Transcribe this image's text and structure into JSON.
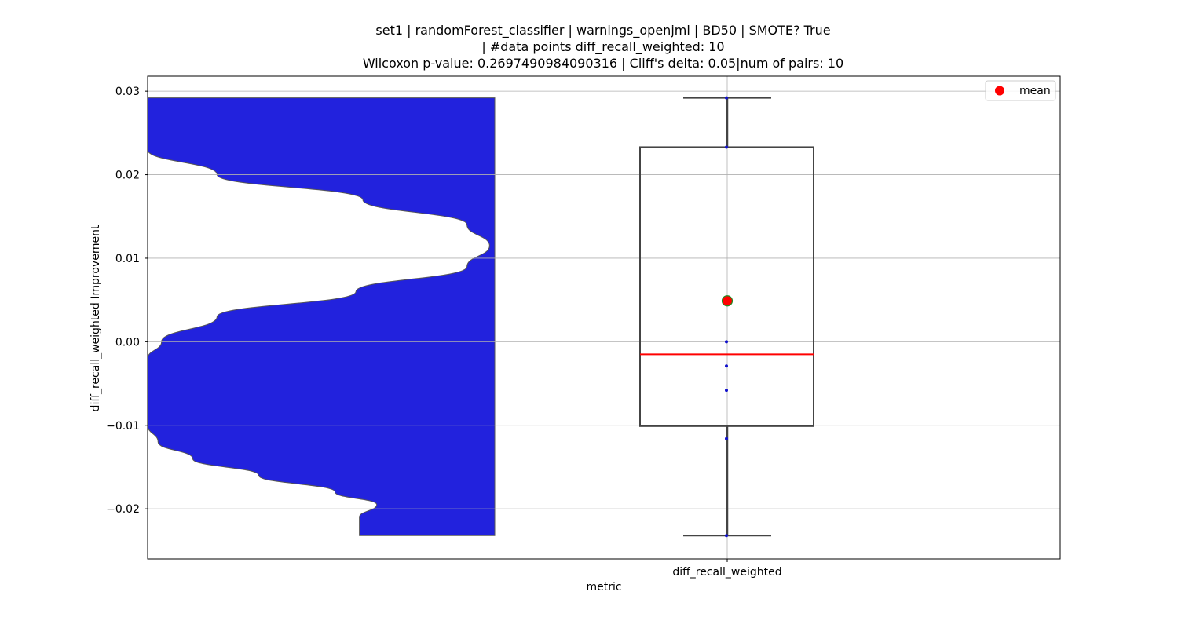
{
  "chart_data": {
    "type": "box",
    "title_lines": [
      "set1 | randomForest_classifier | warnings_openjml | BD50 | SMOTE? True",
      "| #data points diff_recall_weighted: 10",
      "Wilcoxon p-value: 0.2697490984090316 | Cliff's delta: 0.05|num of pairs: 10"
    ],
    "xlabel": "metric",
    "ylabel": "diff_recall_weighted Improvement",
    "categories": [
      "diff_recall_weighted"
    ],
    "ylim": [
      -0.026,
      0.0318
    ],
    "yticks": [
      -0.02,
      -0.01,
      0.0,
      0.01,
      0.02,
      0.03
    ],
    "ytick_labels": [
      "−0.02",
      "−0.01",
      "0.00",
      "0.01",
      "0.02",
      "0.03"
    ],
    "grid": true,
    "legend": {
      "position": "top-right",
      "entries": [
        {
          "label": "mean",
          "color": "#ff0000"
        }
      ]
    },
    "box": {
      "whisker_low": -0.0232,
      "q1": -0.0101,
      "median": -0.0015,
      "q3": 0.0233,
      "whisker_high": 0.0292,
      "mean": 0.0049
    },
    "points": [
      0.0292,
      0.0233,
      0.0,
      -0.0029,
      -0.0058,
      -0.0116,
      -0.0232
    ],
    "density": {
      "color": "#2222dd",
      "y": [
        0.0292,
        0.026,
        0.023,
        0.02,
        0.017,
        0.014,
        0.0115,
        0.009,
        0.006,
        0.003,
        0.0,
        -0.002,
        -0.004,
        -0.006,
        -0.008,
        -0.01,
        -0.012,
        -0.014,
        -0.016,
        -0.018,
        -0.0195,
        -0.021,
        -0.0232
      ],
      "width": [
        1.0,
        1.0,
        1.0,
        0.8,
        0.38,
        0.08,
        0.015,
        0.08,
        0.4,
        0.8,
        0.96,
        1.0,
        1.0,
        1.0,
        1.0,
        1.0,
        0.97,
        0.87,
        0.68,
        0.46,
        0.34,
        0.39,
        0.39
      ]
    },
    "colors": {
      "median": "#ff0000",
      "mean_fill": "#ff0000",
      "mean_edge": "#228b22",
      "points": "#1010cc",
      "box_edge": "#444444"
    }
  }
}
